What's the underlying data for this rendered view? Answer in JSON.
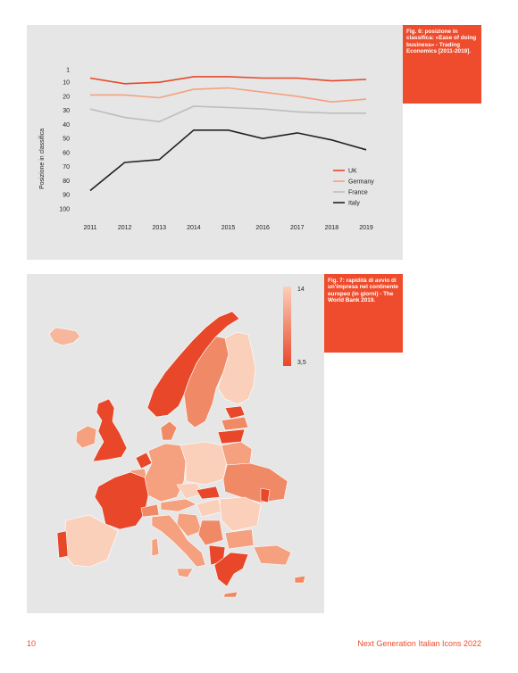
{
  "fig6": {
    "caption": "Fig. 6: posizione in classifica: «Ease of doing business» - Trading Economics [2011-2019].",
    "chart_data": {
      "type": "line",
      "title": "",
      "xlabel": "",
      "ylabel": "Posizione in classifica",
      "x": [
        2011,
        2012,
        2013,
        2014,
        2015,
        2016,
        2017,
        2018,
        2019
      ],
      "y_ticks": [
        1,
        10,
        20,
        30,
        40,
        50,
        60,
        70,
        80,
        90,
        100
      ],
      "ylim": [
        1,
        100
      ],
      "y_inverted": true,
      "legend_position": "bottom-right",
      "series": [
        {
          "name": "UK",
          "color": "#e8472a",
          "values": [
            7,
            11,
            10,
            6,
            6,
            7,
            7,
            9,
            8
          ]
        },
        {
          "name": "Germany",
          "color": "#f5a07e",
          "values": [
            19,
            19,
            21,
            15,
            14,
            17,
            20,
            24,
            22
          ]
        },
        {
          "name": "France",
          "color": "#bdbdbd",
          "values": [
            29,
            35,
            38,
            27,
            28,
            29,
            31,
            32,
            32
          ]
        },
        {
          "name": "Italy",
          "color": "#222222",
          "values": [
            87,
            67,
            65,
            44,
            44,
            50,
            46,
            51,
            58
          ]
        }
      ]
    }
  },
  "fig7": {
    "caption": "Fig. 7: rapidità di avvio di un'impresa nel continente europeo (in giorni) - The World Bank 2019.",
    "scale": {
      "max_label": "14",
      "min_label": "3,5",
      "max_color": "#fbd0bb",
      "min_color": "#e8472a"
    }
  },
  "footer": {
    "page_number": "10",
    "title": "Next Generation Italian Icons 2022"
  }
}
